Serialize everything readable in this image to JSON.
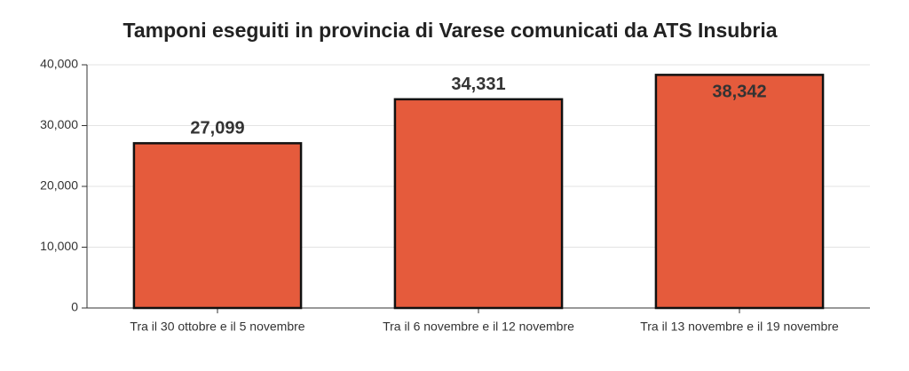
{
  "chart_data": {
    "type": "bar",
    "title": "Tamponi eseguiti in provincia di Varese comunicati da ATS Insubria",
    "categories": [
      "Tra il 30 ottobre e il 5 novembre",
      "Tra il 6 novembre e il 12 novembre",
      "Tra il 13 novembre e il 19 novembre"
    ],
    "values": [
      27099,
      34331,
      38342
    ],
    "value_labels": [
      "27,099",
      "34,331",
      "38,342"
    ],
    "color": "#e55b3c",
    "ylim": [
      0,
      40000
    ],
    "yticks": [
      0,
      {
        "value": 10000,
        "label": "10,000"
      },
      {
        "value": 20000,
        "label": "20,000"
      },
      {
        "value": 30000,
        "label": "30,000"
      },
      {
        "value": 40000,
        "label": "40,000"
      }
    ],
    "grid": true
  }
}
